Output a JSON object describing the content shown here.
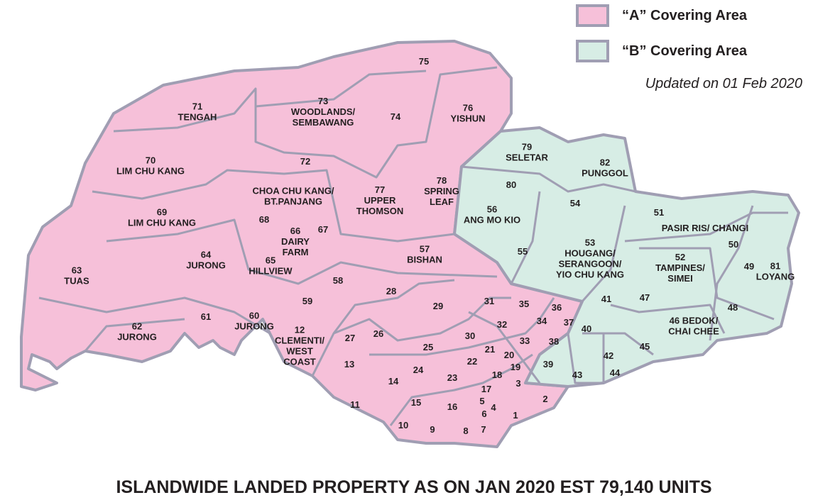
{
  "legend": [
    {
      "label": "“A” Covering Area",
      "color": "#f6c0d9"
    },
    {
      "label": "“B” Covering Area",
      "color": "#d7ede5"
    }
  ],
  "updated": "Updated on 01 Feb 2020",
  "footer": "ISLANDWIDE LANDED PROPERTY AS ON JAN 2020 EST 79,140 UNITS",
  "districts": [
    {
      "number": "71",
      "name": [
        "TENGAH"
      ]
    },
    {
      "number": "73",
      "name": [
        "WOODLANDS/",
        "SEMBAWANG"
      ]
    },
    {
      "number": "75",
      "name": []
    },
    {
      "number": "74",
      "name": []
    },
    {
      "number": "76",
      "name": [
        "YISHUN"
      ]
    },
    {
      "number": "70",
      "name": [
        "LIM CHU KANG"
      ]
    },
    {
      "number": "72",
      "name": []
    },
    {
      "number": "CHOA CHU KANG/",
      "name": [
        "BT.PANJANG"
      ]
    },
    {
      "number": "77",
      "name": [
        "UPPER",
        "THOMSON"
      ]
    },
    {
      "number": "78",
      "name": [
        "SPRING",
        "LEAF"
      ]
    },
    {
      "number": "79",
      "name": [
        "SELETAR"
      ]
    },
    {
      "number": "82",
      "name": [
        "PUNGGOL"
      ]
    },
    {
      "number": "80",
      "name": []
    },
    {
      "number": "54",
      "name": []
    },
    {
      "number": "56",
      "name": [
        "ANG MO KIO"
      ]
    },
    {
      "number": "69",
      "name": [
        "LIM CHU KANG"
      ]
    },
    {
      "number": "68",
      "name": []
    },
    {
      "number": "66",
      "name": [
        "DAIRY",
        "FARM"
      ]
    },
    {
      "number": "67",
      "name": []
    },
    {
      "number": "51",
      "name": []
    },
    {
      "number": "PASIR RIS/ CHANGI",
      "name": []
    },
    {
      "number": "50",
      "name": []
    },
    {
      "number": "53",
      "name": [
        "HOUGANG/",
        "SERANGOON/",
        "YIO CHU KANG"
      ]
    },
    {
      "number": "55",
      "name": []
    },
    {
      "number": "57",
      "name": [
        "BISHAN"
      ]
    },
    {
      "number": "64",
      "name": [
        "JURONG"
      ]
    },
    {
      "number": "65",
      "name": [
        "HILLVIEW"
      ]
    },
    {
      "number": "63",
      "name": [
        "TUAS"
      ]
    },
    {
      "number": "52",
      "name": [
        "TAMPINES/",
        "SIMEI"
      ]
    },
    {
      "number": "49",
      "name": []
    },
    {
      "number": "81",
      "name": [
        "LOYANG"
      ]
    },
    {
      "number": "58",
      "name": []
    },
    {
      "number": "28",
      "name": []
    },
    {
      "number": "59",
      "name": []
    },
    {
      "number": "41",
      "name": []
    },
    {
      "number": "47",
      "name": []
    },
    {
      "number": "31",
      "name": []
    },
    {
      "number": "35",
      "name": []
    },
    {
      "number": "36",
      "name": []
    },
    {
      "number": "29",
      "name": []
    },
    {
      "number": "48",
      "name": []
    },
    {
      "number": "61",
      "name": []
    },
    {
      "number": "60",
      "name": [
        "JURONG"
      ]
    },
    {
      "number": "62",
      "name": [
        "JURONG"
      ]
    },
    {
      "number": "32",
      "name": []
    },
    {
      "number": "34",
      "name": []
    },
    {
      "number": "37",
      "name": []
    },
    {
      "number": "40",
      "name": []
    },
    {
      "number": "46  BEDOK/",
      "name": [
        "CHAI CHEE"
      ]
    },
    {
      "number": "12",
      "name": [
        "CLEMENTI/",
        "WEST",
        "COAST"
      ]
    },
    {
      "number": "27",
      "name": []
    },
    {
      "number": "26",
      "name": []
    },
    {
      "number": "30",
      "name": []
    },
    {
      "number": "33",
      "name": []
    },
    {
      "number": "38",
      "name": []
    },
    {
      "number": "25",
      "name": []
    },
    {
      "number": "21",
      "name": []
    },
    {
      "number": "20",
      "name": []
    },
    {
      "number": "45",
      "name": []
    },
    {
      "number": "22",
      "name": []
    },
    {
      "number": "42",
      "name": []
    },
    {
      "number": "13",
      "name": []
    },
    {
      "number": "24",
      "name": []
    },
    {
      "number": "19",
      "name": []
    },
    {
      "number": "39",
      "name": []
    },
    {
      "number": "18",
      "name": []
    },
    {
      "number": "23",
      "name": []
    },
    {
      "number": "43",
      "name": []
    },
    {
      "number": "44",
      "name": []
    },
    {
      "number": "14",
      "name": []
    },
    {
      "number": "3",
      "name": []
    },
    {
      "number": "17",
      "name": []
    },
    {
      "number": "2",
      "name": []
    },
    {
      "number": "5",
      "name": []
    },
    {
      "number": "4",
      "name": []
    },
    {
      "number": "11",
      "name": []
    },
    {
      "number": "15",
      "name": []
    },
    {
      "number": "16",
      "name": []
    },
    {
      "number": "6",
      "name": []
    },
    {
      "number": "1",
      "name": []
    },
    {
      "number": "10",
      "name": []
    },
    {
      "number": "9",
      "name": []
    },
    {
      "number": "8",
      "name": []
    },
    {
      "number": "7",
      "name": []
    }
  ]
}
